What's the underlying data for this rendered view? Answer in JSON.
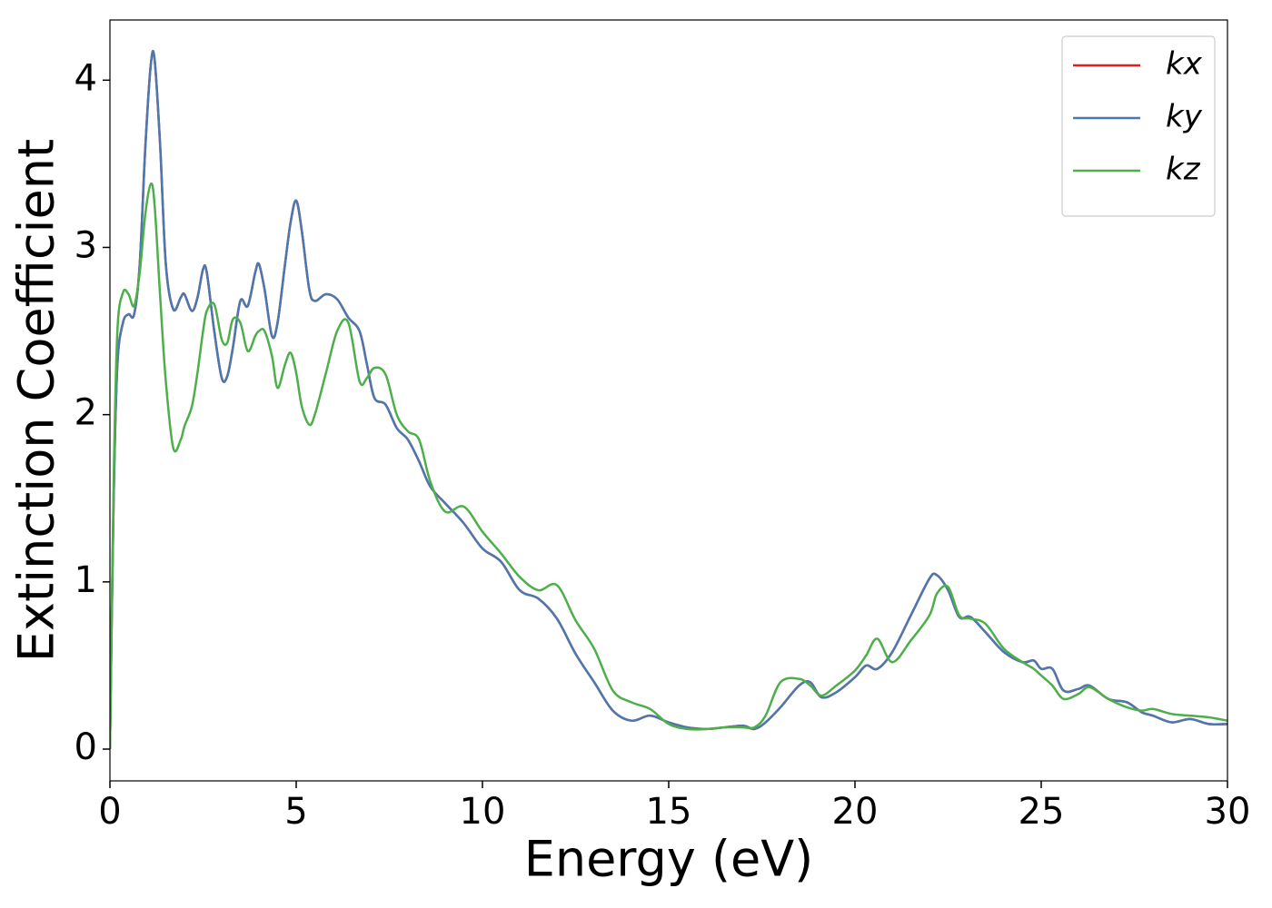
{
  "chart_data": {
    "type": "line",
    "x_label": "Energy (eV)",
    "y_label": "Extinction Coefficient",
    "x": [
      0,
      0.1,
      0.2,
      0.35,
      0.5,
      0.65,
      0.8,
      0.95,
      1.1,
      1.2,
      1.35,
      1.5,
      1.7,
      1.9,
      2.0,
      2.2,
      2.35,
      2.5,
      2.6,
      2.8,
      3.0,
      3.15,
      3.3,
      3.5,
      3.7,
      3.9,
      4.0,
      4.15,
      4.35,
      4.5,
      4.7,
      4.85,
      5.0,
      5.15,
      5.35,
      5.5,
      5.8,
      6.1,
      6.4,
      6.7,
      6.9,
      7.1,
      7.4,
      7.7,
      8.0,
      8.3,
      8.6,
      9.0,
      9.5,
      10,
      10.5,
      11,
      11.5,
      12,
      12.5,
      13,
      13.5,
      14,
      14.5,
      15,
      15.5,
      16,
      16.5,
      17,
      17.3,
      17.6,
      18,
      18.5,
      18.8,
      19.1,
      19.5,
      20,
      20.3,
      20.6,
      21,
      21.5,
      22,
      22.2,
      22.5,
      22.8,
      23.1,
      23.5,
      24,
      24.5,
      24.8,
      25,
      25.3,
      25.6,
      26,
      26.3,
      26.8,
      27.3,
      27.7,
      28,
      28.5,
      29,
      29.5,
      30
    ],
    "series": [
      {
        "name": "kx",
        "color": "#e41a1c",
        "values": [
          0,
          1.5,
          2.3,
          2.55,
          2.6,
          2.6,
          2.9,
          3.6,
          4.1,
          4.12,
          3.6,
          2.9,
          2.63,
          2.7,
          2.72,
          2.62,
          2.7,
          2.87,
          2.85,
          2.5,
          2.22,
          2.23,
          2.4,
          2.68,
          2.65,
          2.85,
          2.9,
          2.75,
          2.47,
          2.55,
          2.9,
          3.15,
          3.28,
          3.1,
          2.75,
          2.68,
          2.72,
          2.69,
          2.58,
          2.5,
          2.3,
          2.1,
          2.06,
          1.92,
          1.85,
          1.72,
          1.57,
          1.47,
          1.35,
          1.2,
          1.12,
          0.95,
          0.9,
          0.78,
          0.57,
          0.4,
          0.23,
          0.17,
          0.2,
          0.16,
          0.13,
          0.12,
          0.13,
          0.14,
          0.12,
          0.16,
          0.25,
          0.38,
          0.4,
          0.31,
          0.34,
          0.43,
          0.5,
          0.48,
          0.58,
          0.8,
          1.02,
          1.04,
          0.95,
          0.79,
          0.79,
          0.7,
          0.58,
          0.52,
          0.53,
          0.48,
          0.48,
          0.35,
          0.36,
          0.38,
          0.3,
          0.28,
          0.22,
          0.2,
          0.16,
          0.18,
          0.15,
          0.15
        ]
      },
      {
        "name": "ky",
        "color": "#4a78b0",
        "values": [
          0,
          1.5,
          2.3,
          2.55,
          2.6,
          2.6,
          2.9,
          3.6,
          4.1,
          4.12,
          3.6,
          2.9,
          2.63,
          2.7,
          2.72,
          2.62,
          2.7,
          2.87,
          2.85,
          2.5,
          2.22,
          2.23,
          2.4,
          2.68,
          2.65,
          2.85,
          2.9,
          2.75,
          2.47,
          2.55,
          2.9,
          3.15,
          3.28,
          3.1,
          2.75,
          2.68,
          2.72,
          2.69,
          2.58,
          2.5,
          2.3,
          2.1,
          2.06,
          1.92,
          1.85,
          1.72,
          1.57,
          1.47,
          1.35,
          1.2,
          1.12,
          0.95,
          0.9,
          0.78,
          0.57,
          0.4,
          0.23,
          0.17,
          0.2,
          0.16,
          0.13,
          0.12,
          0.13,
          0.14,
          0.12,
          0.16,
          0.25,
          0.38,
          0.4,
          0.31,
          0.34,
          0.43,
          0.5,
          0.48,
          0.58,
          0.8,
          1.02,
          1.04,
          0.95,
          0.79,
          0.79,
          0.7,
          0.58,
          0.52,
          0.53,
          0.48,
          0.48,
          0.35,
          0.36,
          0.38,
          0.3,
          0.28,
          0.22,
          0.2,
          0.16,
          0.18,
          0.15,
          0.15
        ]
      },
      {
        "name": "kz",
        "color": "#4daf4a",
        "values": [
          0,
          1.6,
          2.5,
          2.73,
          2.72,
          2.65,
          2.85,
          3.2,
          3.38,
          3.25,
          2.7,
          2.2,
          1.8,
          1.85,
          1.93,
          2.05,
          2.25,
          2.5,
          2.62,
          2.66,
          2.45,
          2.43,
          2.57,
          2.55,
          2.38,
          2.47,
          2.5,
          2.5,
          2.35,
          2.16,
          2.3,
          2.37,
          2.25,
          2.05,
          1.94,
          2.0,
          2.25,
          2.5,
          2.55,
          2.2,
          2.22,
          2.28,
          2.24,
          2.0,
          1.9,
          1.85,
          1.6,
          1.42,
          1.45,
          1.3,
          1.17,
          1.03,
          0.95,
          0.98,
          0.77,
          0.6,
          0.35,
          0.28,
          0.24,
          0.15,
          0.12,
          0.12,
          0.13,
          0.13,
          0.13,
          0.2,
          0.4,
          0.42,
          0.38,
          0.32,
          0.38,
          0.47,
          0.56,
          0.66,
          0.52,
          0.65,
          0.8,
          0.93,
          0.97,
          0.8,
          0.78,
          0.75,
          0.6,
          0.52,
          0.48,
          0.44,
          0.38,
          0.3,
          0.33,
          0.37,
          0.3,
          0.25,
          0.23,
          0.24,
          0.21,
          0.2,
          0.19,
          0.17
        ]
      }
    ],
    "xlim": [
      0,
      30
    ],
    "xticks": [
      0,
      5,
      10,
      15,
      20,
      25,
      30
    ],
    "ylim": [
      -0.19,
      4.36
    ],
    "yticks": [
      0,
      1,
      2,
      3,
      4
    ],
    "legend": "upper right"
  }
}
